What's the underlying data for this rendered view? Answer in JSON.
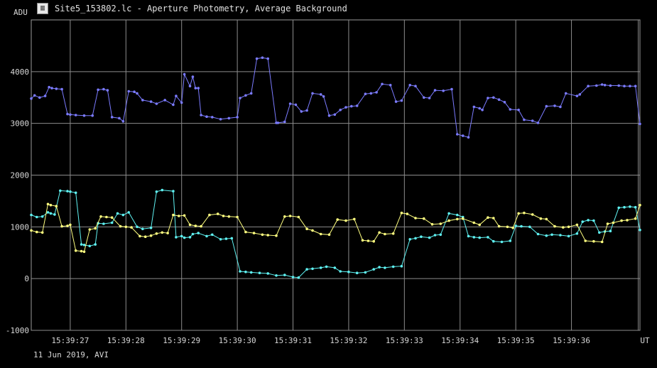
{
  "window": {
    "title": "Site5_153802.lc - Aperture Photometry, Average Background",
    "icon": "light-curve-app-icon"
  },
  "footer_text": "11 Jun 2019, AVI",
  "chart_data": {
    "type": "line",
    "ylabel": "ADU",
    "xlabel": "UT",
    "ylim": [
      -1000,
      5000
    ],
    "xlim": [
      26.3,
      37.23
    ],
    "grid": true,
    "background": "#000000",
    "y_ticks": [
      -1000,
      0,
      1000,
      2000,
      3000,
      4000
    ],
    "x_ticks": [
      {
        "t": 27,
        "label": "15:39:27"
      },
      {
        "t": 28,
        "label": "15:39:28"
      },
      {
        "t": 29,
        "label": "15:39:29"
      },
      {
        "t": 30,
        "label": "15:39:30"
      },
      {
        "t": 31,
        "label": "15:39:31"
      },
      {
        "t": 32,
        "label": "15:39:32"
      },
      {
        "t": 33,
        "label": "15:39:33"
      },
      {
        "t": 34,
        "label": "15:39:34"
      },
      {
        "t": 35,
        "label": "15:39:35"
      },
      {
        "t": 36,
        "label": "15:39:36"
      }
    ],
    "series": [
      {
        "color": "#7b7bff",
        "x": [
          26.3,
          26.36,
          26.45,
          26.55,
          26.62,
          26.67,
          26.75,
          26.85,
          26.95,
          27.0,
          27.1,
          27.25,
          27.4,
          27.5,
          27.6,
          27.67,
          27.75,
          27.88,
          27.95,
          28.05,
          28.15,
          28.2,
          28.3,
          28.45,
          28.55,
          28.7,
          28.85,
          28.9,
          29.0,
          29.05,
          29.15,
          29.2,
          29.25,
          29.3,
          29.35,
          29.45,
          29.55,
          29.7,
          29.85,
          30.0,
          30.05,
          30.15,
          30.25,
          30.35,
          30.45,
          30.55,
          30.7,
          30.73,
          30.85,
          30.95,
          31.05,
          31.15,
          31.25,
          31.35,
          31.5,
          31.55,
          31.65,
          31.75,
          31.85,
          31.95,
          32.05,
          32.15,
          32.3,
          32.4,
          32.5,
          32.6,
          32.75,
          32.85,
          32.95,
          33.1,
          33.2,
          33.35,
          33.45,
          33.55,
          33.7,
          33.85,
          33.95,
          34.05,
          34.15,
          34.25,
          34.35,
          34.4,
          34.5,
          34.6,
          34.7,
          34.8,
          34.9,
          35.05,
          35.15,
          35.3,
          35.4,
          35.55,
          35.7,
          35.8,
          35.9,
          36.1,
          36.15,
          36.3,
          36.45,
          36.55,
          36.6,
          36.7,
          36.85,
          36.95,
          37.05,
          37.15,
          37.23
        ],
        "values": [
          3480,
          3540,
          3500,
          3530,
          3700,
          3680,
          3670,
          3660,
          3180,
          3170,
          3160,
          3150,
          3150,
          3650,
          3660,
          3640,
          3120,
          3100,
          3040,
          3620,
          3610,
          3580,
          3450,
          3420,
          3380,
          3450,
          3360,
          3530,
          3400,
          3950,
          3720,
          3900,
          3680,
          3680,
          3160,
          3130,
          3120,
          3080,
          3100,
          3120,
          3490,
          3540,
          3580,
          4250,
          4270,
          4250,
          3010,
          3010,
          3030,
          3380,
          3360,
          3230,
          3250,
          3580,
          3560,
          3520,
          3150,
          3170,
          3260,
          3310,
          3330,
          3340,
          3570,
          3580,
          3600,
          3760,
          3740,
          3420,
          3440,
          3740,
          3720,
          3500,
          3490,
          3640,
          3630,
          3660,
          2790,
          2760,
          2730,
          3320,
          3290,
          3260,
          3490,
          3500,
          3460,
          3410,
          3270,
          3260,
          3070,
          3050,
          3010,
          3330,
          3340,
          3320,
          3580,
          3530,
          3560,
          3720,
          3730,
          3750,
          3740,
          3730,
          3730,
          3720,
          3720,
          3720,
          2990
        ]
      },
      {
        "color": "#5ff2f2",
        "x": [
          26.3,
          26.4,
          26.5,
          26.6,
          26.65,
          26.72,
          26.82,
          26.95,
          27.0,
          27.1,
          27.2,
          27.25,
          27.35,
          27.45,
          27.5,
          27.6,
          27.75,
          27.85,
          27.95,
          28.05,
          28.2,
          28.3,
          28.45,
          28.55,
          28.65,
          28.85,
          28.9,
          29.0,
          29.05,
          29.15,
          29.2,
          29.3,
          29.45,
          29.55,
          29.7,
          29.8,
          29.9,
          30.05,
          30.15,
          30.25,
          30.4,
          30.55,
          30.7,
          30.85,
          31.0,
          31.1,
          31.25,
          31.35,
          31.5,
          31.6,
          31.75,
          31.85,
          32.0,
          32.15,
          32.3,
          32.45,
          32.55,
          32.65,
          32.8,
          32.95,
          33.1,
          33.2,
          33.3,
          33.45,
          33.55,
          33.65,
          33.8,
          33.95,
          34.05,
          34.15,
          34.25,
          34.35,
          34.5,
          34.6,
          34.75,
          34.9,
          35.0,
          35.1,
          35.25,
          35.4,
          35.55,
          35.65,
          35.8,
          35.95,
          36.1,
          36.2,
          36.3,
          36.4,
          36.5,
          36.6,
          36.7,
          36.85,
          36.95,
          37.05,
          37.15,
          37.23
        ],
        "values": [
          1230,
          1190,
          1200,
          1280,
          1260,
          1240,
          1700,
          1690,
          1680,
          1660,
          660,
          650,
          630,
          660,
          1070,
          1060,
          1080,
          1260,
          1230,
          1280,
          1000,
          960,
          980,
          1680,
          1710,
          1690,
          800,
          820,
          790,
          800,
          860,
          880,
          820,
          850,
          760,
          770,
          780,
          140,
          130,
          120,
          110,
          100,
          60,
          70,
          30,
          20,
          180,
          190,
          210,
          230,
          210,
          140,
          130,
          110,
          120,
          180,
          220,
          210,
          230,
          240,
          760,
          780,
          810,
          790,
          840,
          850,
          1260,
          1230,
          1190,
          820,
          800,
          790,
          800,
          720,
          710,
          730,
          1020,
          1010,
          1000,
          860,
          830,
          850,
          840,
          820,
          870,
          1100,
          1130,
          1120,
          890,
          910,
          920,
          1370,
          1380,
          1390,
          1380,
          940
        ]
      },
      {
        "color": "#ffff80",
        "x": [
          26.3,
          26.4,
          26.5,
          26.6,
          26.65,
          26.75,
          26.85,
          26.95,
          27.0,
          27.1,
          27.2,
          27.25,
          27.35,
          27.45,
          27.55,
          27.65,
          27.75,
          27.9,
          28.0,
          28.1,
          28.25,
          28.35,
          28.45,
          28.55,
          28.65,
          28.75,
          28.85,
          28.95,
          29.05,
          29.15,
          29.25,
          29.35,
          29.5,
          29.65,
          29.75,
          29.85,
          30.0,
          30.15,
          30.3,
          30.45,
          30.55,
          30.7,
          30.85,
          30.95,
          31.1,
          31.25,
          31.35,
          31.5,
          31.65,
          31.8,
          31.95,
          32.1,
          32.25,
          32.35,
          32.45,
          32.55,
          32.65,
          32.8,
          32.95,
          33.05,
          33.2,
          33.35,
          33.5,
          33.65,
          33.8,
          33.95,
          34.05,
          34.25,
          34.35,
          34.5,
          34.6,
          34.7,
          34.85,
          34.95,
          35.05,
          35.15,
          35.3,
          35.45,
          35.55,
          35.7,
          35.85,
          35.95,
          36.1,
          36.25,
          36.4,
          36.55,
          36.65,
          36.75,
          36.9,
          37.0,
          37.15,
          37.23
        ],
        "values": [
          930,
          900,
          890,
          1440,
          1420,
          1400,
          1010,
          1020,
          1040,
          540,
          530,
          520,
          950,
          970,
          1200,
          1190,
          1180,
          1010,
          1000,
          990,
          820,
          810,
          830,
          870,
          890,
          880,
          1230,
          1210,
          1220,
          1040,
          1020,
          1010,
          1230,
          1250,
          1210,
          1200,
          1190,
          900,
          880,
          850,
          840,
          830,
          1200,
          1210,
          1190,
          960,
          930,
          860,
          850,
          1140,
          1120,
          1150,
          740,
          730,
          720,
          890,
          860,
          870,
          1270,
          1250,
          1170,
          1160,
          1050,
          1060,
          1120,
          1150,
          1160,
          1080,
          1040,
          1180,
          1170,
          1010,
          1000,
          980,
          1260,
          1270,
          1240,
          1160,
          1150,
          1010,
          990,
          1000,
          1040,
          730,
          720,
          710,
          1060,
          1080,
          1120,
          1130,
          1160,
          1420
        ]
      }
    ]
  }
}
